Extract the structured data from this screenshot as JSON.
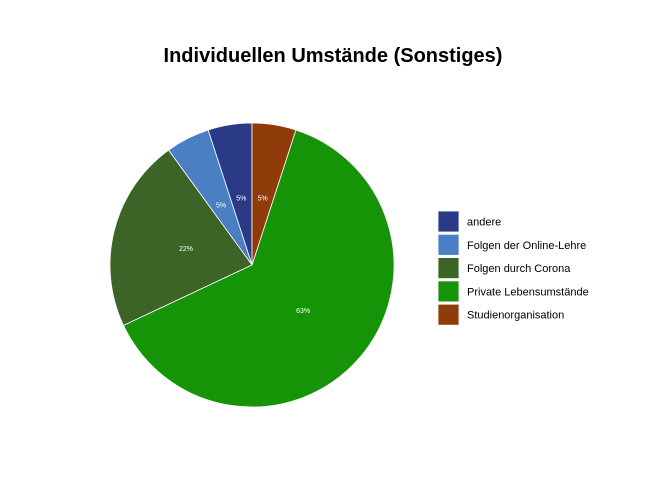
{
  "chart_data": {
    "type": "pie",
    "title": "Individuellen Umstände (Sonstiges)",
    "slices": [
      {
        "label": "andere",
        "value": 5,
        "display": "5%",
        "color": "#2b3a86"
      },
      {
        "label": "Folgen der Online-Lehre",
        "value": 5,
        "display": "5%",
        "color": "#4a7fc4"
      },
      {
        "label": "Folgen durch Corona",
        "value": 22,
        "display": "22%",
        "color": "#3b6426"
      },
      {
        "label": "Private Lebensumstände",
        "value": 63,
        "display": "63%",
        "color": "#169408"
      },
      {
        "label": "Studienorganisation",
        "value": 5,
        "display": "5%",
        "color": "#8f3b0a"
      }
    ],
    "legend_position": "right"
  }
}
